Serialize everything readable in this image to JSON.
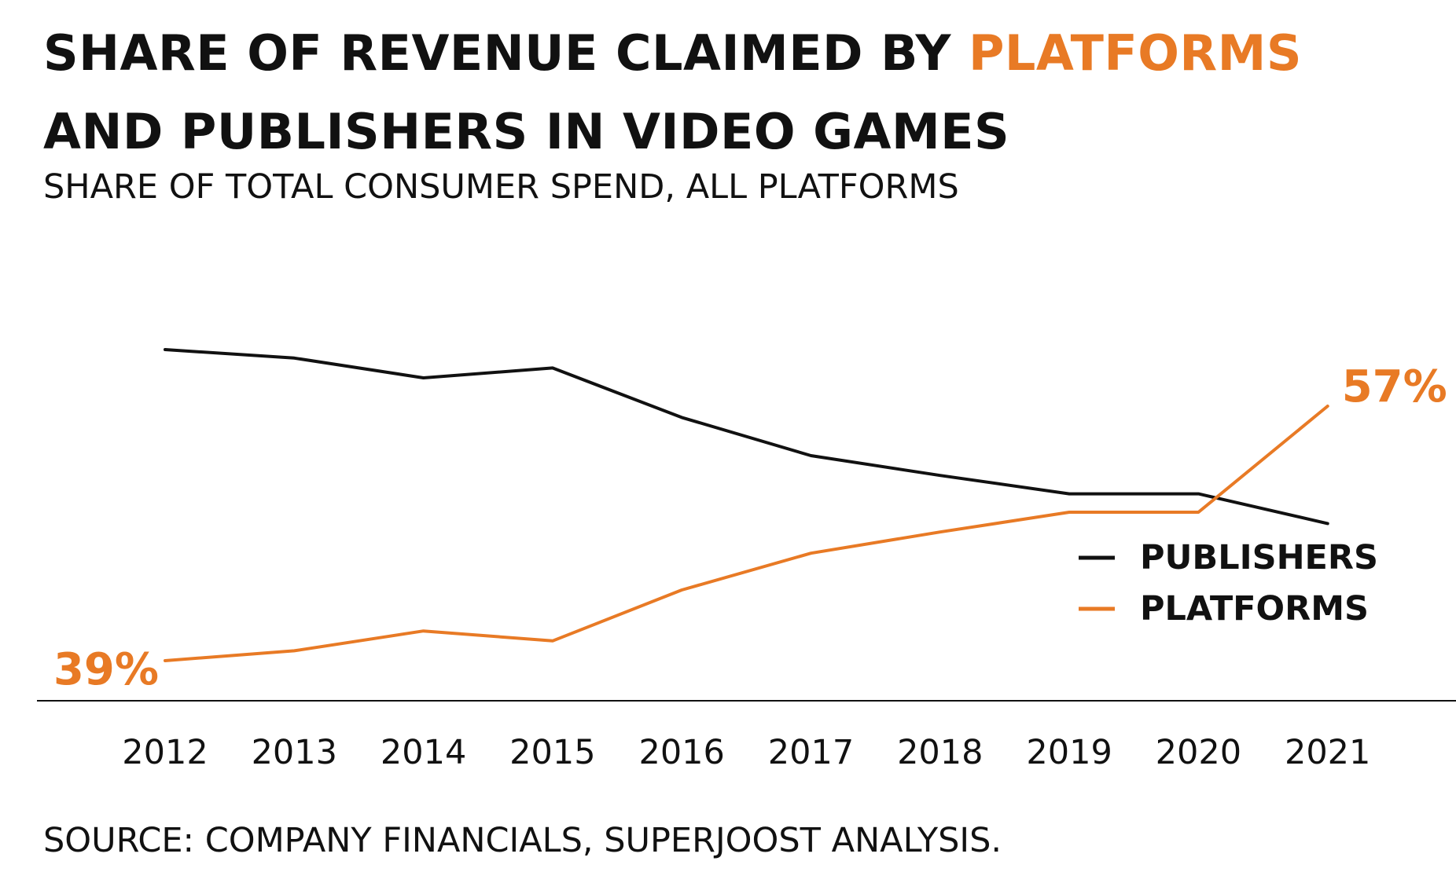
{
  "title": {
    "line1_before": "SHARE OF REVENUE CLAIMED BY ",
    "line1_accent": "PLATFORMS",
    "line2": "AND PUBLISHERS IN VIDEO GAMES"
  },
  "subtitle": "SHARE OF TOTAL CONSUMER SPEND, ALL PLATFORMS",
  "source": "SOURCE: COMPANY FINANCIALS, SUPERJOOST ANALYSIS.",
  "colors": {
    "publishers": "#111111",
    "platforms": "#e87a25",
    "axis": "#111111"
  },
  "chart_data": {
    "type": "line",
    "title": "SHARE OF REVENUE CLAIMED BY PLATFORMS AND PUBLISHERS IN VIDEO GAMES",
    "subtitle": "SHARE OF TOTAL CONSUMER SPEND, ALL PLATFORMS",
    "xlabel": "",
    "ylabel": "",
    "categories": [
      "2012",
      "2013",
      "2014",
      "2015",
      "2016",
      "2017",
      "2018",
      "2019",
      "2020",
      "2021"
    ],
    "series": [
      {
        "name": "PUBLISHERS",
        "color": "#111111",
        "values": [
          61,
          60.4,
          59,
          59.7,
          56.2,
          53.5,
          52.1,
          50.8,
          50.8,
          48.7
        ]
      },
      {
        "name": "PLATFORMS",
        "color": "#e87a25",
        "values": [
          39,
          39.7,
          41.1,
          40.4,
          44,
          46.6,
          48.1,
          49.5,
          49.5,
          57
        ]
      }
    ],
    "annotations": [
      {
        "series": "PLATFORMS",
        "category": "2012",
        "text": "39%"
      },
      {
        "series": "PLATFORMS",
        "category": "2021",
        "text": "57%"
      }
    ],
    "ylim": [
      25,
      75
    ],
    "grid": false,
    "legend": "bottom-right"
  }
}
